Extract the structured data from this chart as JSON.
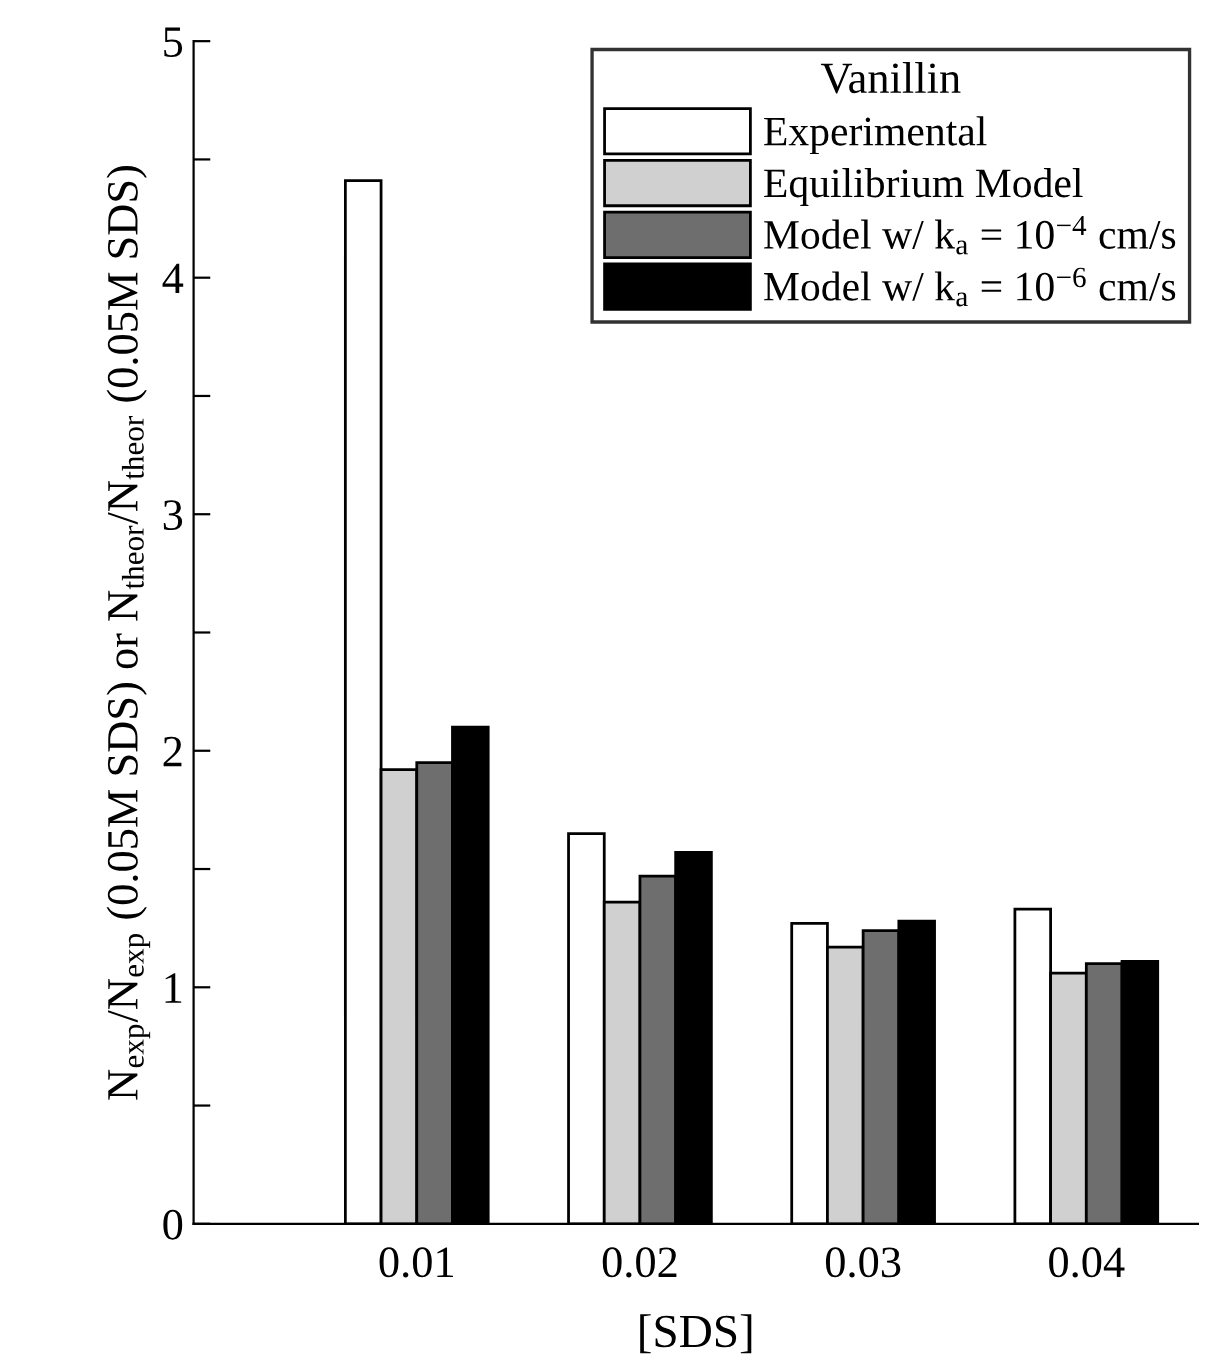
{
  "chart_data": {
    "type": "bar",
    "xlabel": "[SDS]",
    "ylabel": "N$_{exp}$/N$_{exp}$ (0.05M SDS) or N$_{theor}$/N$_{theor}$ (0.05M SDS)",
    "legend_title": "Vanillin",
    "legend": "top right",
    "grid": false,
    "x": [
      0.01,
      0.02,
      0.03,
      0.04
    ],
    "xlim": [
      0,
      0.045
    ],
    "xticks": [
      0.01,
      0.02,
      0.03,
      0.04
    ],
    "ylim": [
      0,
      5
    ],
    "yticks": [
      0,
      {
        "value": 0.5,
        "label": null
      },
      1,
      {
        "value": 1.5,
        "label": null
      },
      2,
      {
        "value": 2.5,
        "label": null
      },
      3,
      {
        "value": 3.5,
        "label": null
      },
      4,
      {
        "value": 4.5,
        "label": null
      },
      5
    ],
    "series": [
      {
        "name": "Experimental",
        "color": "#ffffff",
        "values": [
          4.41,
          1.65,
          1.27,
          1.33
        ]
      },
      {
        "name": "Equilibrium Model",
        "color": "#d0d0d0",
        "values": [
          1.92,
          1.36,
          1.17,
          1.06
        ]
      },
      {
        "name": "Model w/ k$_{a}$ = 10$^{−4}$ cm/s",
        "color": "#6e6e6e",
        "values": [
          1.95,
          1.47,
          1.24,
          1.1
        ]
      },
      {
        "name": "Model w/ k$_{a}$ = 10$^{−6}$ cm/s",
        "color": "#000000",
        "values": [
          2.1,
          1.57,
          1.28,
          1.11
        ]
      }
    ]
  }
}
